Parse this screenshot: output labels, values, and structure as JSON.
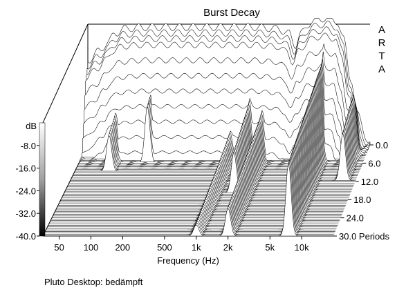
{
  "chart_data": {
    "type": "waterfall",
    "title": "Burst Decay",
    "xlabel": "Frequency (Hz)",
    "ylabel": "dB",
    "zlabel": "Periods",
    "x_scale": "log",
    "xlim_hz": [
      35,
      20000
    ],
    "ylim_db": [
      -40,
      0
    ],
    "zlim_periods": [
      0,
      30
    ],
    "x_ticks": [
      {
        "value": 50,
        "label": "50"
      },
      {
        "value": 100,
        "label": "100"
      },
      {
        "value": 200,
        "label": "200"
      },
      {
        "value": 500,
        "label": "500"
      },
      {
        "value": 1000,
        "label": "1k"
      },
      {
        "value": 2000,
        "label": "2k"
      },
      {
        "value": 5000,
        "label": "5k"
      },
      {
        "value": 10000,
        "label": "10k"
      }
    ],
    "y_ticks": [
      {
        "value": -8,
        "label": "-8.0"
      },
      {
        "value": -16,
        "label": "-16.0"
      },
      {
        "value": -24,
        "label": "-24.0"
      },
      {
        "value": -32,
        "label": "-32.0"
      },
      {
        "value": -40,
        "label": "-40.0"
      }
    ],
    "z_ticks": [
      {
        "value": 0,
        "label": "0.0"
      },
      {
        "value": 6,
        "label": "6.0"
      },
      {
        "value": 12,
        "label": "12.0"
      },
      {
        "value": 18,
        "label": "18.0"
      },
      {
        "value": 24,
        "label": "24.0"
      },
      {
        "value": 30,
        "label": "30.0"
      }
    ],
    "z_unit_label": "Periods",
    "slice_count": 60,
    "initial_response_db": [
      {
        "hz": 35,
        "db": -12
      },
      {
        "hz": 45,
        "db": -9
      },
      {
        "hz": 55,
        "db": -6
      },
      {
        "hz": 65,
        "db": -3
      },
      {
        "hz": 80,
        "db": -1.5
      },
      {
        "hz": 120,
        "db": -1
      },
      {
        "hz": 300,
        "db": -1
      },
      {
        "hz": 800,
        "db": -1
      },
      {
        "hz": 1500,
        "db": -1
      },
      {
        "hz": 2500,
        "db": -1.5
      },
      {
        "hz": 3200,
        "db": -3
      },
      {
        "hz": 3700,
        "db": -7
      },
      {
        "hz": 4200,
        "db": -3
      },
      {
        "hz": 5500,
        "db": 1
      },
      {
        "hz": 7500,
        "db": 2
      },
      {
        "hz": 9500,
        "db": 1
      },
      {
        "hz": 11000,
        "db": -5
      },
      {
        "hz": 13000,
        "db": -18
      },
      {
        "hz": 15000,
        "db": -30
      },
      {
        "hz": 20000,
        "db": -40
      }
    ],
    "resonances": [
      {
        "hz": 75,
        "decay_periods": 9,
        "level_db": -22
      },
      {
        "hz": 160,
        "decay_periods": 6,
        "level_db": -16
      },
      {
        "hz": 1000,
        "decay_periods": 30,
        "level_db": -30
      },
      {
        "hz": 1500,
        "decay_periods": 16,
        "level_db": -20
      },
      {
        "hz": 2000,
        "decay_periods": 30,
        "level_db": -24
      },
      {
        "hz": 7500,
        "decay_periods": 30,
        "level_db": -8
      },
      {
        "hz": 15000,
        "decay_periods": 12,
        "level_db": -18
      }
    ],
    "brand": [
      "A",
      "R",
      "T",
      "A"
    ]
  },
  "footer_note": "Pluto Desktop: bedämpft"
}
